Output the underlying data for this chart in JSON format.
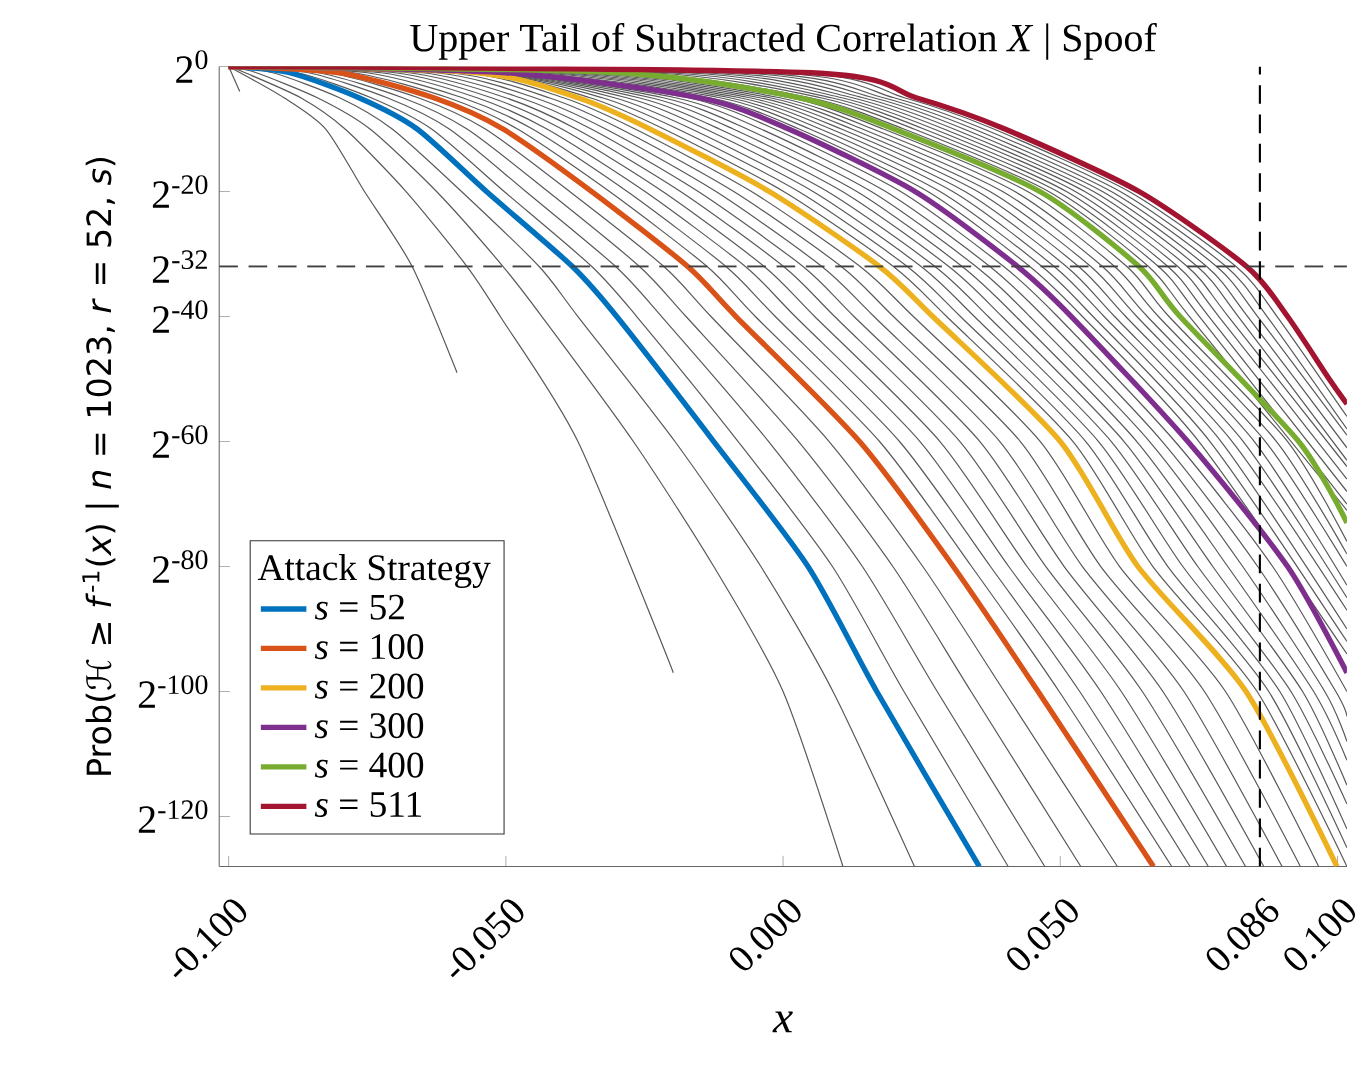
{
  "chart_data": {
    "type": "line",
    "title": "Upper Tail of Subtracted Correlation *X* | Spoof",
    "xlabel": "*x*",
    "ylabel": "Prob(ℋ ≥ *f*$^{-1}$(*x*) | *n* = 1023, *r* = 52, *s*)",
    "legend_title": "Attack Strategy",
    "legend": "bottom left",
    "log": "y",
    "xlim": [
      -0.1017,
      0.1017
    ],
    "ylim": [
      2.939e-39,
      1
    ],
    "xticks": [
      {
        "value": -0.1,
        "label": "-0.100"
      },
      {
        "value": -0.05,
        "label": "-0.050"
      },
      {
        "value": 0,
        "label": "0.000"
      },
      {
        "value": 0.05,
        "label": "0.050"
      },
      {
        "value": 0.086,
        "label": "0.086"
      },
      {
        "value": 0.1,
        "label": "0.100"
      }
    ],
    "yticks": [
      {
        "value": 1,
        "label": "2$^{0}$"
      },
      {
        "value": 9.5367431640625e-07,
        "label": "2$^{-20}$"
      },
      {
        "value": 2.3283064365386963e-10,
        "label": "2$^{-32}$"
      },
      {
        "value": 9.094947017729282e-13,
        "label": "2$^{-40}$"
      },
      {
        "value": 8.673617379884035e-19,
        "label": "2$^{-60}$"
      },
      {
        "value": 8.271806125530277e-25,
        "label": "2$^{-80}$"
      },
      {
        "value": 7.888609052210118e-31,
        "label": "2$^{-100}$"
      },
      {
        "value": 7.52316384526264e-37,
        "label": "2$^{-120}$"
      }
    ],
    "ref_lines": [
      {
        "axis": "y",
        "value": 2.3283064365386963e-10,
        "color": "#404040",
        "line_style": "dashed"
      },
      {
        "axis": "x",
        "value": 0.086,
        "color": "#000000",
        "line_style": "dashed"
      }
    ],
    "series": [
      {
        "name": "*s* = 52",
        "color": "#0072bd",
        "x": [
          -0.1,
          -0.089,
          -0.0765,
          -0.066,
          -0.0535,
          -0.038,
          -0.03,
          -0.0125,
          0.0045,
          0.0169,
          0.0354
        ],
        "values": [
          1,
          0.5,
          0.03125,
          0.0009766,
          9.537e-07,
          2.328e-10,
          9.095e-13,
          8.674e-19,
          8.272e-25,
          7.889e-31,
          2.939e-39
        ]
      },
      {
        "name": "*s* = 100",
        "color": "#d95319",
        "x": [
          -0.1,
          -0.08,
          -0.063,
          -0.0505,
          -0.0345,
          -0.0172,
          -0.0085,
          0.0138,
          0.0307,
          0.046,
          0.0668
        ],
        "values": [
          1,
          0.5,
          0.03125,
          0.0009766,
          9.537e-07,
          2.328e-10,
          9.095e-13,
          8.674e-19,
          8.272e-25,
          7.889e-31,
          2.939e-39
        ]
      },
      {
        "name": "*s* = 200",
        "color": "#edb120",
        "x": [
          -0.1,
          -0.055,
          -0.037,
          -0.024,
          -0.0025,
          0.0174,
          0.027,
          0.05,
          0.064,
          0.0835,
          0.0999
        ],
        "values": [
          1,
          0.5,
          0.03125,
          0.0009766,
          9.537e-07,
          2.328e-10,
          9.095e-13,
          8.674e-19,
          8.272e-25,
          7.889e-31,
          2.939e-39
        ]
      },
      {
        "name": "*s* = 300",
        "color": "#7e2f8e",
        "x": [
          -0.1,
          -0.05,
          -0.015,
          0.001,
          0.0238,
          0.0423,
          0.052,
          0.073,
          0.091,
          0.1017
        ],
        "values": [
          1,
          0.5,
          0.03125,
          0.0009766,
          9.537e-07,
          2.328e-10,
          9.095e-13,
          8.674e-19,
          8.272e-25,
          6.311e-30
        ]
      },
      {
        "name": "*s* = 400",
        "color": "#77ac30",
        "x": [
          -0.1,
          -0.03,
          0.003,
          0.02,
          0.0463,
          0.0642,
          0.0716,
          0.093,
          0.1017
        ],
        "values": [
          1,
          0.5,
          0.03125,
          0.0009766,
          9.537e-07,
          2.328e-10,
          9.095e-13,
          8.674e-19,
          1.059e-22
        ]
      },
      {
        "name": "*s* = 511",
        "color": "#a2142f",
        "x": [
          -0.1,
          0.005,
          0.024,
          0.04,
          0.0642,
          0.0836,
          0.091,
          0.0985,
          0.1017
        ],
        "values": [
          1,
          0.5,
          0.03125,
          0.0009766,
          9.537e-07,
          2.328e-10,
          9.095e-13,
          8.882e-16,
          5.551e-17
        ]
      },
      {
        "color": "#595959",
        "x": [
          -0.1,
          -0.098
        ],
        "values": [
          1,
          0.0625
        ]
      },
      {
        "color": "#595959",
        "x": [
          -0.1,
          -0.09,
          -0.0825,
          -0.0755,
          -0.0669,
          -0.0588
        ],
        "values": [
          1,
          0.03125,
          0.0009766,
          9.537e-07,
          2.328e-10,
          1.776e-15
        ]
      },
      {
        "color": "#595959",
        "x": [
          -0.1,
          -0.097,
          -0.087,
          -0.079,
          -0.068,
          -0.057,
          -0.051,
          -0.037,
          -0.0198
        ],
        "values": [
          1,
          0.5,
          0.03125,
          0.0009766,
          9.537e-07,
          2.328e-10,
          9.095e-13,
          8.674e-19,
          6.311e-30
        ]
      },
      {
        "color": "#595959",
        "x": [
          -0.1,
          -0.095,
          -0.084,
          -0.0745,
          -0.0625,
          -0.0505,
          -0.0435,
          -0.027,
          -0.0125,
          0.0,
          0.0108
        ],
        "values": [
          1,
          0.5,
          0.03125,
          0.0009766,
          9.537e-07,
          2.328e-10,
          9.095e-13,
          8.674e-19,
          8.272e-25,
          7.889e-31,
          2.939e-39
        ]
      },
      {
        "color": "#595959",
        "x": [
          -0.1,
          -0.092,
          -0.08,
          -0.0705,
          -0.058,
          -0.044,
          -0.037,
          -0.0195,
          -0.004,
          0.009,
          0.0237
        ],
        "values": [
          1,
          0.5,
          0.03125,
          0.0009766,
          9.537e-07,
          2.328e-10,
          9.095e-13,
          8.674e-19,
          8.272e-25,
          7.889e-31,
          2.939e-39
        ]
      },
      {
        "color": "#595959",
        "x": [
          -0.1,
          -0.0875,
          -0.0743,
          -0.0634,
          -0.0503,
          -0.0345,
          -0.0264,
          -0.0081,
          0.0089,
          0.0218,
          0.0406
        ],
        "values": [
          1,
          0.5,
          0.03125,
          0.0009766,
          9.537e-07,
          2.328e-10,
          9.095e-13,
          8.674e-19,
          8.272e-25,
          7.889e-31,
          2.939e-39
        ]
      },
      {
        "color": "#595959",
        "x": [
          -0.1,
          -0.0856,
          -0.0714,
          -0.0602,
          -0.0464,
          -0.0302,
          -0.0219,
          -0.0026,
          0.0143,
          0.0278,
          0.0472
        ],
        "values": [
          1,
          0.5,
          0.03125,
          0.0009766,
          9.537e-07,
          2.328e-10,
          9.095e-13,
          8.674e-19,
          8.272e-25,
          7.889e-31,
          2.939e-39
        ]
      },
      {
        "color": "#595959",
        "x": [
          -0.1,
          -0.0838,
          -0.0686,
          -0.057,
          -0.0424,
          -0.0259,
          -0.0175,
          0.0028,
          0.0198,
          0.0339,
          0.0537
        ],
        "values": [
          1,
          0.5,
          0.03125,
          0.0009766,
          9.537e-07,
          2.328e-10,
          9.095e-13,
          8.674e-19,
          8.272e-25,
          7.889e-31,
          2.939e-39
        ]
      },
      {
        "color": "#595959",
        "x": [
          -0.1,
          -0.0819,
          -0.0658,
          -0.0537,
          -0.0385,
          -0.0215,
          -0.013,
          0.0083,
          0.0252,
          0.0399,
          0.0603
        ],
        "values": [
          1,
          0.5,
          0.03125,
          0.0009766,
          9.537e-07,
          2.328e-10,
          9.095e-13,
          8.674e-19,
          8.272e-25,
          7.889e-31,
          2.939e-39
        ]
      },
      {
        "color": "#595959",
        "x": [
          -0.1,
          -0.0775,
          -0.0604,
          -0.0479,
          -0.0313,
          -0.0137,
          -0.005,
          0.0174,
          0.034,
          0.0498,
          0.0701
        ],
        "values": [
          1,
          0.5,
          0.03125,
          0.0009766,
          9.537e-07,
          2.328e-10,
          9.095e-13,
          8.674e-19,
          8.272e-25,
          7.889e-31,
          2.939e-39
        ]
      },
      {
        "color": "#595959",
        "x": [
          -0.1,
          -0.075,
          -0.0578,
          -0.0452,
          -0.0281,
          -0.0103,
          -0.0014,
          0.021,
          0.0374,
          0.0535,
          0.0734
        ],
        "values": [
          1,
          0.5,
          0.03125,
          0.0009766,
          9.537e-07,
          2.328e-10,
          9.095e-13,
          8.674e-19,
          8.272e-25,
          7.889e-31,
          2.939e-39
        ]
      },
      {
        "color": "#595959",
        "x": [
          -0.1,
          -0.0725,
          -0.0552,
          -0.0426,
          -0.0249,
          -0.0068,
          0.0022,
          0.0247,
          0.0407,
          0.0573,
          0.0767
        ],
        "values": [
          1,
          0.5,
          0.03125,
          0.0009766,
          9.537e-07,
          2.328e-10,
          9.095e-13,
          8.674e-19,
          8.272e-25,
          7.889e-31,
          2.939e-39
        ]
      },
      {
        "color": "#595959",
        "x": [
          -0.1,
          -0.07,
          -0.0526,
          -0.0399,
          -0.0217,
          -0.0034,
          0.0057,
          0.0283,
          0.044,
          0.061,
          0.08
        ],
        "values": [
          1,
          0.5,
          0.03125,
          0.0009766,
          9.537e-07,
          2.328e-10,
          9.095e-13,
          8.674e-19,
          8.272e-25,
          7.889e-31,
          2.939e-39
        ]
      },
      {
        "color": "#595959",
        "x": [
          -0.1,
          -0.0675,
          -0.05,
          -0.0373,
          -0.0185,
          0.0001,
          0.0093,
          0.0319,
          0.0474,
          0.0648,
          0.0834
        ],
        "values": [
          1,
          0.5,
          0.03125,
          0.0009766,
          9.537e-07,
          2.328e-10,
          9.095e-13,
          8.674e-19,
          8.272e-25,
          7.889e-31,
          2.939e-39
        ]
      },
      {
        "color": "#595959",
        "x": [
          -0.1,
          -0.065,
          -0.0474,
          -0.0346,
          -0.0153,
          0.0036,
          0.0128,
          0.0355,
          0.0507,
          0.0685,
          0.0867
        ],
        "values": [
          1,
          0.5,
          0.03125,
          0.0009766,
          9.537e-07,
          2.328e-10,
          9.095e-13,
          8.674e-19,
          8.272e-25,
          7.889e-31,
          2.939e-39
        ]
      },
      {
        "color": "#595959",
        "x": [
          -0.1,
          -0.0625,
          -0.0448,
          -0.032,
          -0.0121,
          0.007,
          0.0164,
          0.0391,
          0.054,
          0.0723,
          0.09
        ],
        "values": [
          1,
          0.5,
          0.03125,
          0.0009766,
          9.537e-07,
          2.328e-10,
          9.095e-13,
          8.674e-19,
          8.272e-25,
          7.889e-31,
          2.939e-39
        ]
      },
      {
        "color": "#595959",
        "x": [
          -0.1,
          -0.06,
          -0.0422,
          -0.0293,
          -0.0089,
          0.0105,
          0.0199,
          0.0428,
          0.0573,
          0.076,
          0.0933
        ],
        "values": [
          1,
          0.5,
          0.03125,
          0.0009766,
          9.537e-07,
          2.328e-10,
          9.095e-13,
          8.674e-19,
          8.272e-25,
          7.889e-31,
          2.939e-39
        ]
      },
      {
        "color": "#595959",
        "x": [
          -0.1,
          -0.0575,
          -0.0396,
          -0.0267,
          -0.0057,
          0.0139,
          0.0235,
          0.0464,
          0.0607,
          0.0798,
          0.0966
        ],
        "values": [
          1,
          0.5,
          0.03125,
          0.0009766,
          9.537e-07,
          2.328e-10,
          9.095e-13,
          8.674e-19,
          8.272e-25,
          7.889e-31,
          2.939e-39
        ]
      },
      {
        "color": "#595959",
        "x": [
          -0.1,
          -0.0545,
          -0.0348,
          -0.0215,
          0.0001,
          0.0199,
          0.0295,
          0.0523,
          0.0667,
          0.0855,
          0.1017
        ],
        "values": [
          1,
          0.5,
          0.03125,
          0.0009766,
          9.537e-07,
          2.328e-10,
          9.095e-13,
          8.674e-19,
          8.272e-25,
          7.889e-31,
          2.939e-39
        ]
      },
      {
        "color": "#595959",
        "x": [
          -0.1,
          -0.054,
          -0.0326,
          -0.019,
          0.0028,
          0.0224,
          0.032,
          0.0546,
          0.0694,
          0.0876,
          0.1017
        ],
        "values": [
          1,
          0.5,
          0.03125,
          0.0009766,
          9.537e-07,
          2.328e-10,
          9.095e-13,
          8.674e-19,
          8.272e-25,
          7.889e-31,
          2.351e-38
        ]
      },
      {
        "color": "#595959",
        "x": [
          -0.1,
          -0.0535,
          -0.0304,
          -0.0165,
          0.0054,
          0.0249,
          0.0345,
          0.0569,
          0.0721,
          0.0896,
          0.1017
        ],
        "values": [
          1,
          0.5,
          0.03125,
          0.0009766,
          9.537e-07,
          2.328e-10,
          9.095e-13,
          8.674e-19,
          8.272e-25,
          7.889e-31,
          1.881e-37
        ]
      },
      {
        "color": "#595959",
        "x": [
          -0.1,
          -0.053,
          -0.0282,
          -0.014,
          0.008,
          0.0274,
          0.037,
          0.0592,
          0.0748,
          0.0916,
          0.1017
        ],
        "values": [
          1,
          0.5,
          0.03125,
          0.0009766,
          9.537e-07,
          2.328e-10,
          9.095e-13,
          8.674e-19,
          8.272e-25,
          7.889e-31,
          3.009e-36
        ]
      },
      {
        "color": "#595959",
        "x": [
          -0.1,
          -0.0525,
          -0.026,
          -0.0115,
          0.0107,
          0.0299,
          0.0395,
          0.0615,
          0.0775,
          0.0937,
          0.1017
        ],
        "values": [
          1,
          0.5,
          0.03125,
          0.0009766,
          9.537e-07,
          2.328e-10,
          9.095e-13,
          8.674e-19,
          8.272e-25,
          7.889e-31,
          2.407e-35
        ]
      },
      {
        "color": "#595959",
        "x": [
          -0.1,
          -0.052,
          -0.0238,
          -0.009,
          0.0133,
          0.0323,
          0.042,
          0.0638,
          0.0802,
          0.0957,
          0.1017
        ],
        "values": [
          1,
          0.5,
          0.03125,
          0.0009766,
          9.537e-07,
          2.328e-10,
          9.095e-13,
          8.674e-19,
          8.272e-25,
          7.889e-31,
          3.852e-34
        ]
      },
      {
        "color": "#595959",
        "x": [
          -0.1,
          -0.0515,
          -0.0216,
          -0.0065,
          0.0159,
          0.0348,
          0.0445,
          0.0661,
          0.0829,
          0.0977,
          0.1017
        ],
        "values": [
          1,
          0.5,
          0.03125,
          0.0009766,
          9.537e-07,
          2.328e-10,
          9.095e-13,
          8.674e-19,
          8.272e-25,
          7.889e-31,
          3.082e-33
        ]
      },
      {
        "color": "#595959",
        "x": [
          -0.1,
          -0.051,
          -0.0194,
          -0.004,
          0.0185,
          0.0373,
          0.047,
          0.0684,
          0.0856,
          0.0997,
          0.1017
        ],
        "values": [
          1,
          0.5,
          0.03125,
          0.0009766,
          9.537e-07,
          2.328e-10,
          9.095e-13,
          8.674e-19,
          8.272e-25,
          7.889e-31,
          4.931e-32
        ]
      },
      {
        "color": "#595959",
        "x": [
          -0.1,
          -0.0505,
          -0.0172,
          -0.0015,
          0.0212,
          0.0398,
          0.0495,
          0.0707,
          0.0883,
          0.1017
        ],
        "values": [
          1,
          0.5,
          0.03125,
          0.0009766,
          9.537e-07,
          2.328e-10,
          9.095e-13,
          8.674e-19,
          8.272e-25,
          7.889e-31
        ]
      },
      {
        "color": "#595959",
        "x": [
          -0.1,
          -0.048,
          -0.0132,
          0.0029,
          0.0261,
          0.0445,
          0.054,
          0.075,
          0.1017
        ],
        "values": [
          1,
          0.5,
          0.03125,
          0.0009766,
          9.537e-07,
          2.328e-10,
          9.095e-13,
          8.674e-19,
          5.049e-29
        ]
      },
      {
        "color": "#595959",
        "x": [
          -0.1,
          -0.046,
          -0.0114,
          0.0048,
          0.0283,
          0.0467,
          0.0559,
          0.077,
          0.1017
        ],
        "values": [
          1,
          0.5,
          0.03125,
          0.0009766,
          9.537e-07,
          2.328e-10,
          9.095e-13,
          8.674e-19,
          2.019e-28
        ]
      },
      {
        "color": "#595959",
        "x": [
          -0.1,
          -0.044,
          -0.0096,
          0.0067,
          0.0306,
          0.0489,
          0.0579,
          0.079,
          0.1017
        ],
        "values": [
          1,
          0.5,
          0.03125,
          0.0009766,
          9.537e-07,
          2.328e-10,
          9.095e-13,
          8.674e-19,
          8.078e-28
        ]
      },
      {
        "color": "#595959",
        "x": [
          -0.1,
          -0.042,
          -0.0078,
          0.0086,
          0.0328,
          0.0511,
          0.0598,
          0.081,
          0.1017
        ],
        "values": [
          1,
          0.5,
          0.03125,
          0.0009766,
          9.537e-07,
          2.328e-10,
          9.095e-13,
          8.674e-19,
          6.463e-27
        ]
      },
      {
        "color": "#595959",
        "x": [
          -0.1,
          -0.04,
          -0.006,
          0.0105,
          0.0351,
          0.0533,
          0.0618,
          0.083,
          0.1017
        ],
        "values": [
          1,
          0.5,
          0.03125,
          0.0009766,
          9.537e-07,
          2.328e-10,
          9.095e-13,
          8.674e-19,
          2.585e-26
        ]
      },
      {
        "color": "#595959",
        "x": [
          -0.1,
          -0.038,
          -0.0042,
          0.0124,
          0.0373,
          0.0555,
          0.0638,
          0.085,
          0.1017
        ],
        "values": [
          1,
          0.5,
          0.03125,
          0.0009766,
          9.537e-07,
          2.328e-10,
          9.095e-13,
          8.674e-19,
          1.034e-25
        ]
      },
      {
        "color": "#595959",
        "x": [
          -0.1,
          -0.036,
          -0.0024,
          0.0143,
          0.0396,
          0.0576,
          0.0657,
          0.087,
          0.1017
        ],
        "values": [
          1,
          0.5,
          0.03125,
          0.0009766,
          9.537e-07,
          2.328e-10,
          9.095e-13,
          8.674e-19,
          8.272e-25
        ]
      },
      {
        "color": "#595959",
        "x": [
          -0.1,
          -0.034,
          -0.0006,
          0.0162,
          0.0418,
          0.0598,
          0.0677,
          0.089,
          0.1017
        ],
        "values": [
          1,
          0.5,
          0.03125,
          0.0009766,
          9.537e-07,
          2.328e-10,
          9.095e-13,
          8.674e-19,
          3.309e-24
        ]
      },
      {
        "color": "#595959",
        "x": [
          -0.1,
          -0.032,
          0.0012,
          0.0181,
          0.0441,
          0.062,
          0.0696,
          0.091,
          0.1017
        ],
        "values": [
          1,
          0.5,
          0.03125,
          0.0009766,
          9.537e-07,
          2.328e-10,
          9.095e-13,
          8.674e-19,
          1.323e-23
        ]
      },
      {
        "color": "#595959",
        "x": [
          -0.1,
          -0.0268,
          0.0049,
          0.0218,
          0.0479,
          0.0659,
          0.0733,
          0.1017
        ],
        "values": [
          1,
          0.5,
          0.03125,
          0.0009766,
          9.537e-07,
          2.328e-10,
          9.095e-13,
          4.235e-22
        ]
      },
      {
        "color": "#595959",
        "x": [
          -0.1,
          -0.0237,
          0.0068,
          0.0236,
          0.0495,
          0.0677,
          0.0751,
          0.1017
        ],
        "values": [
          1,
          0.5,
          0.03125,
          0.0009766,
          9.537e-07,
          2.328e-10,
          9.095e-13,
          8.47e-22
        ]
      },
      {
        "color": "#595959",
        "x": [
          -0.1,
          -0.0206,
          0.0087,
          0.0254,
          0.0511,
          0.0694,
          0.0768,
          0.1017
        ],
        "values": [
          1,
          0.5,
          0.03125,
          0.0009766,
          9.537e-07,
          2.328e-10,
          9.095e-13,
          3.388e-21
        ]
      },
      {
        "color": "#595959",
        "x": [
          -0.1,
          -0.0174,
          0.0106,
          0.0272,
          0.0527,
          0.0712,
          0.0786,
          0.1017
        ],
        "values": [
          1,
          0.5,
          0.03125,
          0.0009766,
          9.537e-07,
          2.328e-10,
          9.095e-13,
          1.355e-20
        ]
      },
      {
        "color": "#595959",
        "x": [
          -0.1,
          -0.0143,
          0.0125,
          0.029,
          0.0544,
          0.0729,
          0.0803,
          0.1017
        ],
        "values": [
          1,
          0.5,
          0.03125,
          0.0009766,
          9.537e-07,
          2.328e-10,
          9.095e-13,
          5.421e-20
        ]
      },
      {
        "color": "#595959",
        "x": [
          -0.1,
          -0.0111,
          0.0144,
          0.0308,
          0.056,
          0.0747,
          0.0821,
          0.1017
        ],
        "values": [
          1,
          0.5,
          0.03125,
          0.0009766,
          9.537e-07,
          2.328e-10,
          9.095e-13,
          1.084e-19
        ]
      },
      {
        "color": "#595959",
        "x": [
          -0.1,
          -0.0079,
          0.0163,
          0.0326,
          0.0576,
          0.0764,
          0.0838,
          0.1017
        ],
        "values": [
          1,
          0.5,
          0.03125,
          0.0009766,
          9.537e-07,
          2.328e-10,
          9.095e-13,
          4.337e-19
        ]
      },
      {
        "color": "#595959",
        "x": [
          -0.1,
          -0.0048,
          0.0181,
          0.0344,
          0.0592,
          0.0782,
          0.0856,
          0.1017
        ],
        "values": [
          1,
          0.5,
          0.03125,
          0.0009766,
          9.537e-07,
          2.328e-10,
          9.095e-13,
          1.735e-18
        ]
      },
      {
        "color": "#595959",
        "x": [
          -0.1,
          -0.0016,
          0.02,
          0.0362,
          0.0608,
          0.0799,
          0.0873,
          0.1017
        ],
        "values": [
          1,
          0.5,
          0.03125,
          0.0009766,
          9.537e-07,
          2.328e-10,
          9.095e-13,
          3.47e-18
        ]
      },
      {
        "color": "#595959",
        "x": [
          -0.1,
          0.0015,
          0.0219,
          0.038,
          0.0624,
          0.0817,
          0.0891,
          0.1017
        ],
        "values": [
          1,
          0.5,
          0.03125,
          0.0009766,
          9.537e-07,
          2.328e-10,
          9.095e-13,
          1.388e-17
        ]
      }
    ]
  }
}
